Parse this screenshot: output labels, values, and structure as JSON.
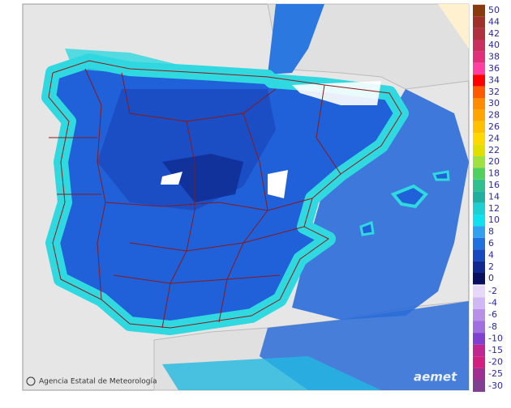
{
  "map": {
    "credit": "Agencia Estatal de Meteorología",
    "logo": "aemet"
  },
  "legend": {
    "positive": [
      {
        "value": 50,
        "color": "#8b3a0e"
      },
      {
        "value": 44,
        "color": "#a0302a"
      },
      {
        "value": 42,
        "color": "#b03040"
      },
      {
        "value": 40,
        "color": "#c83060"
      },
      {
        "value": 38,
        "color": "#e0307a"
      },
      {
        "value": 36,
        "color": "#ff40a0"
      },
      {
        "value": 34,
        "color": "#ff0000"
      },
      {
        "value": 32,
        "color": "#ff5a00"
      },
      {
        "value": 30,
        "color": "#ff8c00"
      },
      {
        "value": 28,
        "color": "#ffa500"
      },
      {
        "value": 26,
        "color": "#ffc000"
      },
      {
        "value": 24,
        "color": "#ffd800"
      },
      {
        "value": 22,
        "color": "#e0e000"
      },
      {
        "value": 20,
        "color": "#a0e040"
      },
      {
        "value": 18,
        "color": "#50d060"
      },
      {
        "value": 16,
        "color": "#30c090"
      },
      {
        "value": 14,
        "color": "#20b0a0"
      },
      {
        "value": 12,
        "color": "#20d0d0"
      },
      {
        "value": 10,
        "color": "#10e0f0"
      },
      {
        "value": 8,
        "color": "#30a0f0"
      },
      {
        "value": 6,
        "color": "#2070e0"
      },
      {
        "value": 4,
        "color": "#1848c0"
      },
      {
        "value": 2,
        "color": "#102890"
      },
      {
        "value": 0,
        "color": "#0a1060"
      }
    ],
    "negative": [
      {
        "value": -2,
        "color": "#e8d8f8"
      },
      {
        "value": -4,
        "color": "#d0b8f0"
      },
      {
        "value": -6,
        "color": "#b890e8"
      },
      {
        "value": -8,
        "color": "#a070e0"
      },
      {
        "value": -10,
        "color": "#8040d0"
      },
      {
        "value": -15,
        "color": "#c02890"
      },
      {
        "value": -20,
        "color": "#d02080"
      },
      {
        "value": -25,
        "color": "#a03090"
      },
      {
        "value": -30,
        "color": "#804090"
      }
    ]
  }
}
